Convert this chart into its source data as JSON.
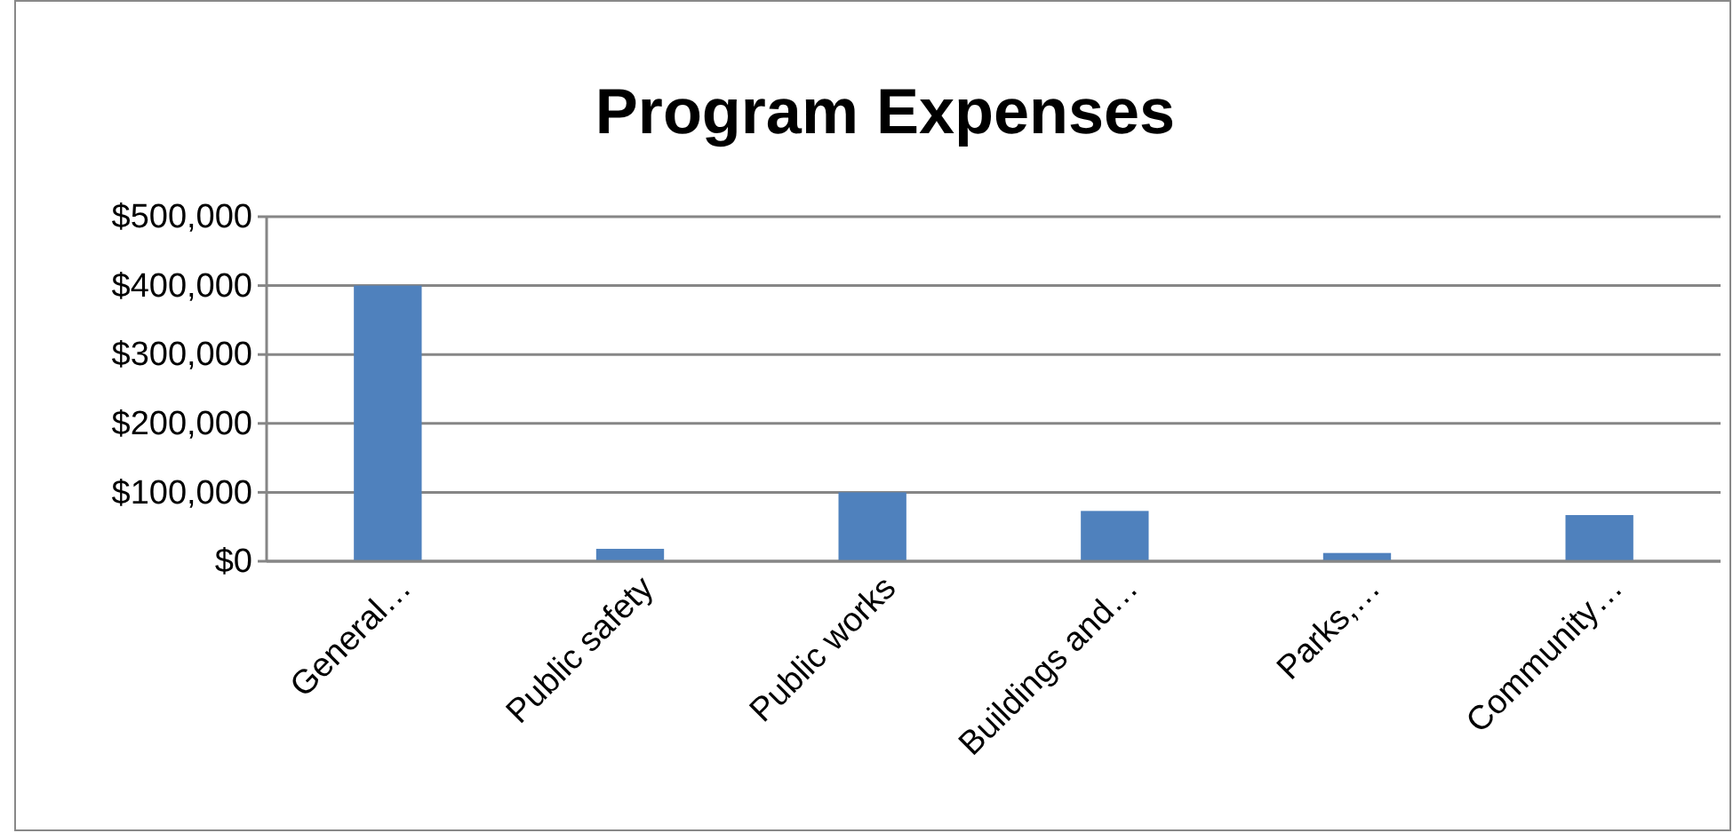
{
  "chart_data": {
    "type": "bar",
    "title": "Program Expenses",
    "categories": [
      "General…",
      "Public safety",
      "Public works",
      "Buildings and…",
      "Parks,…",
      "Community…"
    ],
    "values": [
      400000,
      18000,
      100000,
      73000,
      12000,
      67000
    ],
    "color": "#4f81bd",
    "ylim": [
      0,
      500000
    ],
    "yticks": [
      {
        "value": 0,
        "label": "$0"
      },
      {
        "value": 100000,
        "label": "$100,000"
      },
      {
        "value": 200000,
        "label": "$200,000"
      },
      {
        "value": 300000,
        "label": "$300,000"
      },
      {
        "value": 400000,
        "label": "$400,000"
      },
      {
        "value": 500000,
        "label": "$500,000"
      }
    ],
    "grid": "y"
  }
}
